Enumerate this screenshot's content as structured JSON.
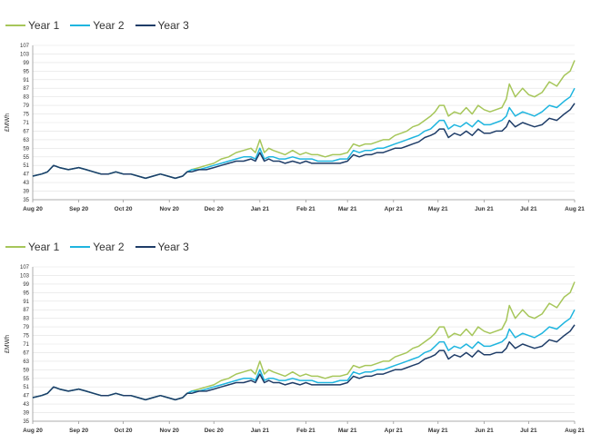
{
  "colors": {
    "year1": "#a6c65a",
    "year2": "#1fb5df",
    "year3": "#1f3d68"
  },
  "chart_data": [
    {
      "type": "line",
      "ylabel": "£MWh",
      "ylim": [
        35,
        107
      ],
      "yticks": [
        35,
        39,
        43,
        47,
        51,
        55,
        59,
        63,
        67,
        71,
        75,
        79,
        83,
        87,
        91,
        95,
        99,
        103,
        107
      ],
      "xlim": [
        0,
        365
      ],
      "xtick_positions": [
        0,
        31,
        61,
        92,
        122,
        153,
        184,
        212,
        243,
        273,
        304,
        334,
        365
      ],
      "xtick_labels": [
        "Aug 20",
        "Sep 20",
        "Oct 20",
        "Nov 20",
        "Dec 20",
        "Jan 21",
        "Feb 21",
        "Mar 21",
        "Apr 21",
        "May 21",
        "Jun 21",
        "Jul 21",
        "Aug 21"
      ],
      "grid": true,
      "legend": "top-left",
      "series": [
        {
          "name": "Year 1",
          "color": "#a6c65a",
          "x": [
            0,
            6,
            10,
            14,
            18,
            24,
            31,
            36,
            41,
            46,
            51,
            56,
            61,
            66,
            71,
            76,
            81,
            86,
            91,
            96,
            101,
            104,
            107,
            112,
            117,
            122,
            127,
            132,
            137,
            142,
            147,
            150,
            153,
            156,
            159,
            162,
            166,
            170,
            175,
            180,
            184,
            188,
            192,
            197,
            202,
            207,
            212,
            216,
            220,
            224,
            228,
            232,
            236,
            240,
            244,
            248,
            252,
            256,
            260,
            264,
            268,
            271,
            274,
            277,
            280,
            284,
            288,
            292,
            296,
            300,
            304,
            308,
            312,
            316,
            319,
            321,
            325,
            330,
            334,
            338,
            343,
            348,
            353,
            358,
            362,
            365
          ],
          "y": [
            46,
            47,
            48,
            51,
            50,
            49,
            50,
            49,
            48,
            47,
            47,
            48,
            47,
            47,
            46,
            45,
            46,
            47,
            46,
            45,
            46,
            48,
            49,
            50,
            51,
            52,
            54,
            55,
            57,
            58,
            59,
            57,
            63,
            57,
            59,
            58,
            57,
            56,
            58,
            56,
            57,
            56,
            56,
            55,
            56,
            56,
            57,
            61,
            60,
            61,
            61,
            62,
            63,
            63,
            65,
            66,
            67,
            69,
            70,
            72,
            74,
            76,
            79,
            79,
            74,
            76,
            75,
            78,
            75,
            79,
            77,
            76,
            77,
            78,
            82,
            89,
            83,
            87,
            84,
            83,
            85,
            90,
            88,
            93,
            95,
            100
          ]
        },
        {
          "name": "Year 2",
          "color": "#1fb5df",
          "x": [
            0,
            6,
            10,
            14,
            18,
            24,
            31,
            36,
            41,
            46,
            51,
            56,
            61,
            66,
            71,
            76,
            81,
            86,
            91,
            96,
            101,
            104,
            107,
            112,
            117,
            122,
            127,
            132,
            137,
            142,
            147,
            150,
            153,
            156,
            159,
            162,
            166,
            170,
            175,
            180,
            184,
            188,
            192,
            197,
            202,
            207,
            212,
            216,
            220,
            224,
            228,
            232,
            236,
            240,
            244,
            248,
            252,
            256,
            260,
            264,
            268,
            271,
            274,
            277,
            280,
            284,
            288,
            292,
            296,
            300,
            304,
            308,
            312,
            316,
            319,
            321,
            325,
            330,
            334,
            338,
            343,
            348,
            353,
            358,
            362,
            365
          ],
          "y": [
            46,
            47,
            48,
            51,
            50,
            49,
            50,
            49,
            48,
            47,
            47,
            48,
            47,
            47,
            46,
            45,
            46,
            47,
            46,
            45,
            46,
            48,
            49,
            49,
            50,
            51,
            52,
            53,
            54,
            55,
            55,
            54,
            59,
            54,
            55,
            55,
            54,
            54,
            55,
            54,
            54,
            54,
            53,
            53,
            53,
            54,
            54,
            58,
            57,
            58,
            58,
            59,
            59,
            60,
            61,
            62,
            63,
            64,
            65,
            67,
            68,
            70,
            72,
            72,
            68,
            70,
            69,
            71,
            69,
            72,
            70,
            70,
            71,
            72,
            74,
            78,
            74,
            76,
            75,
            74,
            76,
            79,
            78,
            81,
            83,
            87
          ]
        },
        {
          "name": "Year 3",
          "color": "#1f3d68",
          "x": [
            0,
            6,
            10,
            14,
            18,
            24,
            31,
            36,
            41,
            46,
            51,
            56,
            61,
            66,
            71,
            76,
            81,
            86,
            91,
            96,
            101,
            104,
            107,
            112,
            117,
            122,
            127,
            132,
            137,
            142,
            147,
            150,
            153,
            156,
            159,
            162,
            166,
            170,
            175,
            180,
            184,
            188,
            192,
            197,
            202,
            207,
            212,
            216,
            220,
            224,
            228,
            232,
            236,
            240,
            244,
            248,
            252,
            256,
            260,
            264,
            268,
            271,
            274,
            277,
            280,
            284,
            288,
            292,
            296,
            300,
            304,
            308,
            312,
            316,
            319,
            321,
            325,
            330,
            334,
            338,
            343,
            348,
            353,
            358,
            362,
            365
          ],
          "y": [
            46,
            47,
            48,
            51,
            50,
            49,
            50,
            49,
            48,
            47,
            47,
            48,
            47,
            47,
            46,
            45,
            46,
            47,
            46,
            45,
            46,
            48,
            48,
            49,
            49,
            50,
            51,
            52,
            53,
            53,
            54,
            53,
            57,
            53,
            54,
            53,
            53,
            52,
            53,
            52,
            53,
            52,
            52,
            52,
            52,
            52,
            53,
            56,
            55,
            56,
            56,
            57,
            57,
            58,
            59,
            59,
            60,
            61,
            62,
            64,
            65,
            66,
            68,
            68,
            64,
            66,
            65,
            67,
            65,
            68,
            66,
            66,
            67,
            67,
            69,
            72,
            69,
            71,
            70,
            69,
            70,
            73,
            72,
            75,
            77,
            80
          ]
        }
      ]
    },
    {
      "type": "line",
      "ylabel": "£MWh",
      "ylim": [
        35,
        107
      ],
      "yticks": [
        35,
        39,
        43,
        47,
        51,
        55,
        59,
        63,
        67,
        71,
        75,
        79,
        83,
        87,
        91,
        95,
        99,
        103,
        107
      ],
      "xlim": [
        0,
        365
      ],
      "xtick_positions": [
        0,
        31,
        61,
        92,
        122,
        153,
        184,
        212,
        243,
        273,
        304,
        334,
        365
      ],
      "xtick_labels": [
        "Aug 20",
        "Sep 20",
        "Oct 20",
        "Nov 20",
        "Dec 20",
        "Jan 21",
        "Feb 21",
        "Mar 21",
        "Apr 21",
        "May 21",
        "Jun 21",
        "Jul 21",
        "Aug 21"
      ],
      "grid": true,
      "legend": "top-left",
      "series": [
        {
          "name": "Year 1",
          "color": "#a6c65a",
          "x": [
            0,
            6,
            10,
            14,
            18,
            24,
            31,
            36,
            41,
            46,
            51,
            56,
            61,
            66,
            71,
            76,
            81,
            86,
            91,
            96,
            101,
            104,
            107,
            112,
            117,
            122,
            127,
            132,
            137,
            142,
            147,
            150,
            153,
            156,
            159,
            162,
            166,
            170,
            175,
            180,
            184,
            188,
            192,
            197,
            202,
            207,
            212,
            216,
            220,
            224,
            228,
            232,
            236,
            240,
            244,
            248,
            252,
            256,
            260,
            264,
            268,
            271,
            274,
            277,
            280,
            284,
            288,
            292,
            296,
            300,
            304,
            308,
            312,
            316,
            319,
            321,
            325,
            330,
            334,
            338,
            343,
            348,
            353,
            358,
            362,
            365
          ],
          "y": [
            46,
            47,
            48,
            51,
            50,
            49,
            50,
            49,
            48,
            47,
            47,
            48,
            47,
            47,
            46,
            45,
            46,
            47,
            46,
            45,
            46,
            48,
            49,
            50,
            51,
            52,
            54,
            55,
            57,
            58,
            59,
            57,
            63,
            57,
            59,
            58,
            57,
            56,
            58,
            56,
            57,
            56,
            56,
            55,
            56,
            56,
            57,
            61,
            60,
            61,
            61,
            62,
            63,
            63,
            65,
            66,
            67,
            69,
            70,
            72,
            74,
            76,
            79,
            79,
            74,
            76,
            75,
            78,
            75,
            79,
            77,
            76,
            77,
            78,
            82,
            89,
            83,
            87,
            84,
            83,
            85,
            90,
            88,
            93,
            95,
            100
          ]
        },
        {
          "name": "Year 2",
          "color": "#1fb5df",
          "x": [
            0,
            6,
            10,
            14,
            18,
            24,
            31,
            36,
            41,
            46,
            51,
            56,
            61,
            66,
            71,
            76,
            81,
            86,
            91,
            96,
            101,
            104,
            107,
            112,
            117,
            122,
            127,
            132,
            137,
            142,
            147,
            150,
            153,
            156,
            159,
            162,
            166,
            170,
            175,
            180,
            184,
            188,
            192,
            197,
            202,
            207,
            212,
            216,
            220,
            224,
            228,
            232,
            236,
            240,
            244,
            248,
            252,
            256,
            260,
            264,
            268,
            271,
            274,
            277,
            280,
            284,
            288,
            292,
            296,
            300,
            304,
            308,
            312,
            316,
            319,
            321,
            325,
            330,
            334,
            338,
            343,
            348,
            353,
            358,
            362,
            365
          ],
          "y": [
            46,
            47,
            48,
            51,
            50,
            49,
            50,
            49,
            48,
            47,
            47,
            48,
            47,
            47,
            46,
            45,
            46,
            47,
            46,
            45,
            46,
            48,
            49,
            49,
            50,
            51,
            52,
            53,
            54,
            55,
            55,
            54,
            59,
            54,
            55,
            55,
            54,
            54,
            55,
            54,
            54,
            54,
            53,
            53,
            53,
            54,
            54,
            58,
            57,
            58,
            58,
            59,
            59,
            60,
            61,
            62,
            63,
            64,
            65,
            67,
            68,
            70,
            72,
            72,
            68,
            70,
            69,
            71,
            69,
            72,
            70,
            70,
            71,
            72,
            74,
            78,
            74,
            76,
            75,
            74,
            76,
            79,
            78,
            81,
            83,
            87
          ]
        },
        {
          "name": "Year 3",
          "color": "#1f3d68",
          "x": [
            0,
            6,
            10,
            14,
            18,
            24,
            31,
            36,
            41,
            46,
            51,
            56,
            61,
            66,
            71,
            76,
            81,
            86,
            91,
            96,
            101,
            104,
            107,
            112,
            117,
            122,
            127,
            132,
            137,
            142,
            147,
            150,
            153,
            156,
            159,
            162,
            166,
            170,
            175,
            180,
            184,
            188,
            192,
            197,
            202,
            207,
            212,
            216,
            220,
            224,
            228,
            232,
            236,
            240,
            244,
            248,
            252,
            256,
            260,
            264,
            268,
            271,
            274,
            277,
            280,
            284,
            288,
            292,
            296,
            300,
            304,
            308,
            312,
            316,
            319,
            321,
            325,
            330,
            334,
            338,
            343,
            348,
            353,
            358,
            362,
            365
          ],
          "y": [
            46,
            47,
            48,
            51,
            50,
            49,
            50,
            49,
            48,
            47,
            47,
            48,
            47,
            47,
            46,
            45,
            46,
            47,
            46,
            45,
            46,
            48,
            48,
            49,
            49,
            50,
            51,
            52,
            53,
            53,
            54,
            53,
            57,
            53,
            54,
            53,
            53,
            52,
            53,
            52,
            53,
            52,
            52,
            52,
            52,
            52,
            53,
            56,
            55,
            56,
            56,
            57,
            57,
            58,
            59,
            59,
            60,
            61,
            62,
            64,
            65,
            66,
            68,
            68,
            64,
            66,
            65,
            67,
            65,
            68,
            66,
            66,
            67,
            67,
            69,
            72,
            69,
            71,
            70,
            69,
            70,
            73,
            72,
            75,
            77,
            80
          ]
        }
      ]
    }
  ]
}
